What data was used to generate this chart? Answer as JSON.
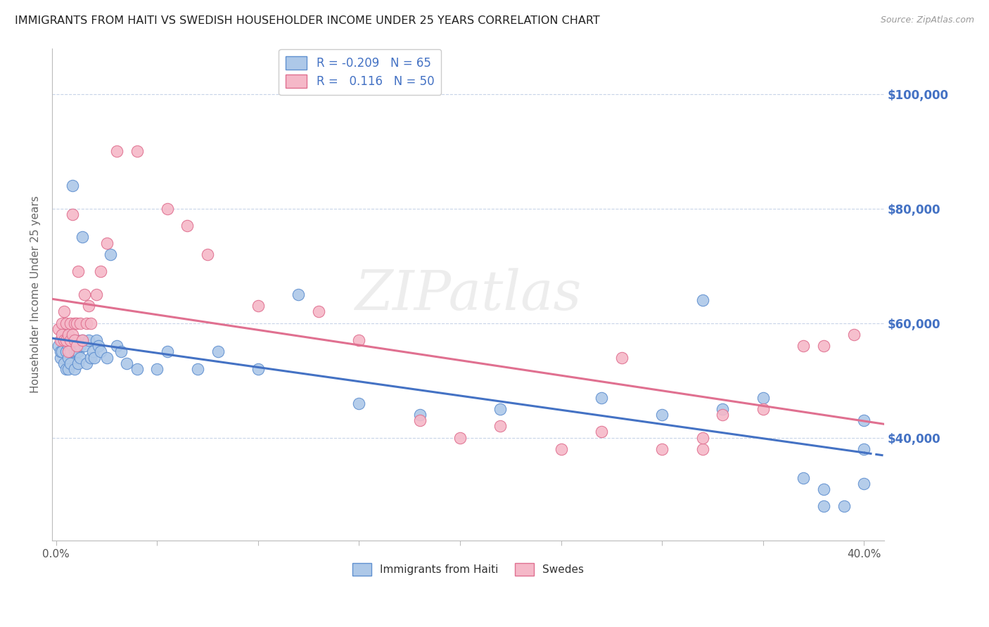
{
  "title": "IMMIGRANTS FROM HAITI VS SWEDISH HOUSEHOLDER INCOME UNDER 25 YEARS CORRELATION CHART",
  "source": "Source: ZipAtlas.com",
  "ylabel": "Householder Income Under 25 years",
  "ytick_values": [
    40000,
    60000,
    80000,
    100000
  ],
  "ylim": [
    22000,
    108000
  ],
  "xlim": [
    -0.002,
    0.41
  ],
  "legend_entry1": "R = -0.209   N = 65",
  "legend_entry2": "R =   0.116   N = 50",
  "legend_label1": "Immigrants from Haiti",
  "legend_label2": "Swedes",
  "haiti_color": "#adc8e8",
  "sweden_color": "#f5b8c8",
  "haiti_edge_color": "#6090d0",
  "sweden_edge_color": "#e07090",
  "haiti_line_color": "#4472c4",
  "sweden_line_color": "#e07090",
  "background_color": "#ffffff",
  "grid_color": "#c8d4e8",
  "title_color": "#222222",
  "right_label_color": "#4472c4",
  "haiti_scatter_x": [
    0.001,
    0.002,
    0.002,
    0.003,
    0.003,
    0.004,
    0.004,
    0.005,
    0.005,
    0.005,
    0.006,
    0.006,
    0.006,
    0.007,
    0.007,
    0.007,
    0.008,
    0.008,
    0.009,
    0.009,
    0.009,
    0.01,
    0.01,
    0.011,
    0.011,
    0.012,
    0.012,
    0.013,
    0.013,
    0.014,
    0.015,
    0.016,
    0.017,
    0.018,
    0.019,
    0.02,
    0.021,
    0.022,
    0.025,
    0.027,
    0.03,
    0.032,
    0.035,
    0.04,
    0.05,
    0.055,
    0.07,
    0.08,
    0.1,
    0.12,
    0.15,
    0.18,
    0.22,
    0.27,
    0.3,
    0.32,
    0.33,
    0.35,
    0.37,
    0.38,
    0.38,
    0.39,
    0.4,
    0.4,
    0.4
  ],
  "haiti_scatter_y": [
    56000,
    54000,
    55000,
    57000,
    55000,
    58000,
    53000,
    55000,
    57000,
    52000,
    56000,
    54000,
    52000,
    57000,
    55000,
    53000,
    84000,
    56000,
    57000,
    55000,
    52000,
    57000,
    55000,
    55000,
    53000,
    56000,
    54000,
    75000,
    57000,
    56000,
    53000,
    57000,
    54000,
    55000,
    54000,
    57000,
    56000,
    55000,
    54000,
    72000,
    56000,
    55000,
    53000,
    52000,
    52000,
    55000,
    52000,
    55000,
    52000,
    65000,
    46000,
    44000,
    45000,
    47000,
    44000,
    64000,
    45000,
    47000,
    33000,
    31000,
    28000,
    28000,
    43000,
    38000,
    32000
  ],
  "sweden_scatter_x": [
    0.001,
    0.002,
    0.003,
    0.003,
    0.004,
    0.004,
    0.005,
    0.005,
    0.006,
    0.006,
    0.007,
    0.007,
    0.008,
    0.008,
    0.009,
    0.009,
    0.01,
    0.01,
    0.011,
    0.012,
    0.013,
    0.014,
    0.015,
    0.016,
    0.017,
    0.02,
    0.022,
    0.025,
    0.03,
    0.04,
    0.055,
    0.065,
    0.075,
    0.1,
    0.13,
    0.15,
    0.18,
    0.2,
    0.22,
    0.25,
    0.27,
    0.28,
    0.3,
    0.32,
    0.32,
    0.33,
    0.35,
    0.37,
    0.38,
    0.395
  ],
  "sweden_scatter_y": [
    59000,
    57000,
    60000,
    58000,
    62000,
    57000,
    60000,
    57000,
    58000,
    55000,
    60000,
    57000,
    79000,
    58000,
    60000,
    57000,
    60000,
    56000,
    69000,
    60000,
    57000,
    65000,
    60000,
    63000,
    60000,
    65000,
    69000,
    74000,
    90000,
    90000,
    80000,
    77000,
    72000,
    63000,
    62000,
    57000,
    43000,
    40000,
    42000,
    38000,
    41000,
    54000,
    38000,
    38000,
    40000,
    44000,
    45000,
    56000,
    56000,
    58000
  ]
}
